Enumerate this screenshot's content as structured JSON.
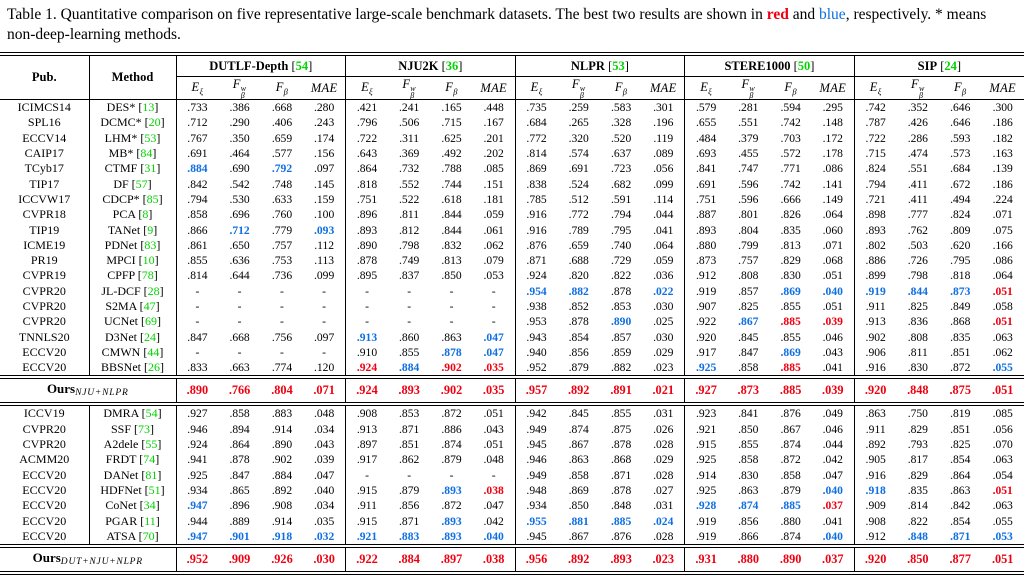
{
  "colors": {
    "red": "#ee0011",
    "blue": "#0e6fe2",
    "green": "#00d300",
    "black": "#000000"
  },
  "caption": {
    "parts": [
      {
        "text": "Table 1. Quantitative comparison on five representative large-scale benchmark datasets. The best two results are shown in ",
        "color": "k"
      },
      {
        "text": "red",
        "color": "r"
      },
      {
        "text": " and ",
        "color": "k"
      },
      {
        "text": "blue",
        "color": "b"
      },
      {
        "text": ", respectively. * means non-deep-learning methods.",
        "color": "k"
      }
    ]
  },
  "table": {
    "pub_header": "Pub.",
    "method_header": "Method",
    "groups": [
      {
        "name": "DUTLF-Depth",
        "ref": "54"
      },
      {
        "name": "NJU2K",
        "ref": "36"
      },
      {
        "name": "NLPR",
        "ref": "53"
      },
      {
        "name": "STERE1000",
        "ref": "50"
      },
      {
        "name": "SIP",
        "ref": "24"
      }
    ],
    "metrics": [
      {
        "base": "E",
        "sub": "ξ"
      },
      {
        "base": "F",
        "sup": "w",
        "sub": "β"
      },
      {
        "base": "F",
        "sub": "β"
      },
      {
        "base": "MAE"
      }
    ],
    "sections": [
      {
        "rows": [
          {
            "pub": "ICIMCS14",
            "method": "DES*",
            "ref": "13",
            "values": [
              ".733",
              ".386",
              ".668",
              ".280",
              ".421",
              ".241",
              ".165",
              ".448",
              ".735",
              ".259",
              ".583",
              ".301",
              ".579",
              ".281",
              ".594",
              ".295",
              ".742",
              ".352",
              ".646",
              ".300"
            ],
            "colors": "kkkkkkkkkkkkkkkkkkkk"
          },
          {
            "pub": "SPL16",
            "method": "DCMC*",
            "ref": "20",
            "values": [
              ".712",
              ".290",
              ".406",
              ".243",
              ".796",
              ".506",
              ".715",
              ".167",
              ".684",
              ".265",
              ".328",
              ".196",
              ".655",
              ".551",
              ".742",
              ".148",
              ".787",
              ".426",
              ".646",
              ".186"
            ],
            "colors": "kkkkkkkkkkkkkkkkkkkk"
          },
          {
            "pub": "ECCV14",
            "method": "LHM*",
            "ref": "53",
            "values": [
              ".767",
              ".350",
              ".659",
              ".174",
              ".722",
              ".311",
              ".625",
              ".201",
              ".772",
              ".320",
              ".520",
              ".119",
              ".484",
              ".379",
              ".703",
              ".172",
              ".722",
              ".286",
              ".593",
              ".182"
            ],
            "colors": "kkkkkkkkkkkkkkkkkkkk"
          },
          {
            "pub": "CAIP17",
            "method": "MB*",
            "ref": "84",
            "values": [
              ".691",
              ".464",
              ".577",
              ".156",
              ".643",
              ".369",
              ".492",
              ".202",
              ".814",
              ".574",
              ".637",
              ".089",
              ".693",
              ".455",
              ".572",
              ".178",
              ".715",
              ".474",
              ".573",
              ".163"
            ],
            "colors": "kkkkkkkkkkkkkkkkkkkk"
          },
          {
            "pub": "TCyb17",
            "method": "CTMF",
            "ref": "31",
            "values": [
              ".884",
              ".690",
              ".792",
              ".097",
              ".864",
              ".732",
              ".788",
              ".085",
              ".869",
              ".691",
              ".723",
              ".056",
              ".841",
              ".747",
              ".771",
              ".086",
              ".824",
              ".551",
              ".684",
              ".139"
            ],
            "colors": "bkbkkkkkkkkkkkkkkkkk"
          },
          {
            "pub": "TIP17",
            "method": "DF",
            "ref": "57",
            "values": [
              ".842",
              ".542",
              ".748",
              ".145",
              ".818",
              ".552",
              ".744",
              ".151",
              ".838",
              ".524",
              ".682",
              ".099",
              ".691",
              ".596",
              ".742",
              ".141",
              ".794",
              ".411",
              ".672",
              ".186"
            ],
            "colors": "kkkkkkkkkkkkkkkkkkkk"
          },
          {
            "pub": "ICCVW17",
            "method": "CDCP*",
            "ref": "85",
            "values": [
              ".794",
              ".530",
              ".633",
              ".159",
              ".751",
              ".522",
              ".618",
              ".181",
              ".785",
              ".512",
              ".591",
              ".114",
              ".751",
              ".596",
              ".666",
              ".149",
              ".721",
              ".411",
              ".494",
              ".224"
            ],
            "colors": "kkkkkkkkkkkkkkkkkkkk"
          },
          {
            "pub": "CVPR18",
            "method": "PCA",
            "ref": "8",
            "values": [
              ".858",
              ".696",
              ".760",
              ".100",
              ".896",
              ".811",
              ".844",
              ".059",
              ".916",
              ".772",
              ".794",
              ".044",
              ".887",
              ".801",
              ".826",
              ".064",
              ".898",
              ".777",
              ".824",
              ".071"
            ],
            "colors": "kkkkkkkkkkkkkkkkkkkk"
          },
          {
            "pub": "TIP19",
            "method": "TANet",
            "ref": "9",
            "values": [
              ".866",
              ".712",
              ".779",
              ".093",
              ".893",
              ".812",
              ".844",
              ".061",
              ".916",
              ".789",
              ".795",
              ".041",
              ".893",
              ".804",
              ".835",
              ".060",
              ".893",
              ".762",
              ".809",
              ".075"
            ],
            "colors": "kbkbkkkkkkkkkkkkkkkk"
          },
          {
            "pub": "ICME19",
            "method": "PDNet",
            "ref": "83",
            "values": [
              ".861",
              ".650",
              ".757",
              ".112",
              ".890",
              ".798",
              ".832",
              ".062",
              ".876",
              ".659",
              ".740",
              ".064",
              ".880",
              ".799",
              ".813",
              ".071",
              ".802",
              ".503",
              ".620",
              ".166"
            ],
            "colors": "kkkkkkkkkkkkkkkkkkkk"
          },
          {
            "pub": "PR19",
            "method": "MPCI",
            "ref": "10",
            "values": [
              ".855",
              ".636",
              ".753",
              ".113",
              ".878",
              ".749",
              ".813",
              ".079",
              ".871",
              ".688",
              ".729",
              ".059",
              ".873",
              ".757",
              ".829",
              ".068",
              ".886",
              ".726",
              ".795",
              ".086"
            ],
            "colors": "kkkkkkkkkkkkkkkkkkkk"
          },
          {
            "pub": "CVPR19",
            "method": "CPFP",
            "ref": "78",
            "values": [
              ".814",
              ".644",
              ".736",
              ".099",
              ".895",
              ".837",
              ".850",
              ".053",
              ".924",
              ".820",
              ".822",
              ".036",
              ".912",
              ".808",
              ".830",
              ".051",
              ".899",
              ".798",
              ".818",
              ".064"
            ],
            "colors": "kkkkkkkkkkkkkkkkkkkk"
          },
          {
            "pub": "CVPR20",
            "method": "JL-DCF",
            "ref": "28",
            "values": [
              "-",
              "-",
              "-",
              "-",
              "-",
              "-",
              "-",
              "-",
              ".954",
              ".882",
              ".878",
              ".022",
              ".919",
              ".857",
              ".869",
              ".040",
              ".919",
              ".844",
              ".873",
              ".051"
            ],
            "colors": "kkkkkkkkbbkbkkbbbbbr"
          },
          {
            "pub": "CVPR20",
            "method": "S2MA",
            "ref": "47",
            "values": [
              "-",
              "-",
              "-",
              "-",
              "-",
              "-",
              "-",
              "-",
              ".938",
              ".852",
              ".853",
              ".030",
              ".907",
              ".825",
              ".855",
              ".051",
              ".911",
              ".825",
              ".849",
              ".058"
            ],
            "colors": "kkkkkkkkkkkkkkkkkkkk"
          },
          {
            "pub": "CVPR20",
            "method": "UCNet",
            "ref": "69",
            "values": [
              "-",
              "-",
              "-",
              "-",
              "-",
              "-",
              "-",
              "-",
              ".953",
              ".878",
              ".890",
              ".025",
              ".922",
              ".867",
              ".885",
              ".039",
              ".913",
              ".836",
              ".868",
              ".051"
            ],
            "colors": "kkkkkkkkkkbkkbrrkkkr"
          },
          {
            "pub": "TNNLS20",
            "method": "D3Net",
            "ref": "24",
            "values": [
              ".847",
              ".668",
              ".756",
              ".097",
              ".913",
              ".860",
              ".863",
              ".047",
              ".943",
              ".854",
              ".857",
              ".030",
              ".920",
              ".845",
              ".855",
              ".046",
              ".902",
              ".808",
              ".835",
              ".063"
            ],
            "colors": "kkkkbkkbkkkkkkkkkkkk"
          },
          {
            "pub": "ECCV20",
            "method": "CMWN",
            "ref": "44",
            "values": [
              "-",
              "-",
              "-",
              "-",
              ".910",
              ".855",
              ".878",
              ".047",
              ".940",
              ".856",
              ".859",
              ".029",
              ".917",
              ".847",
              ".869",
              ".043",
              ".906",
              ".811",
              ".851",
              ".062"
            ],
            "colors": "kkkkkkbbkkkkkkbkkkkk"
          },
          {
            "pub": "ECCV20",
            "method": "BBSNet",
            "ref": "26",
            "values": [
              ".833",
              ".663",
              ".774",
              ".120",
              ".924",
              ".884",
              ".902",
              ".035",
              ".952",
              ".879",
              ".882",
              ".023",
              ".925",
              ".858",
              ".885",
              ".041",
              ".916",
              ".830",
              ".872",
              ".055"
            ],
            "colors": "kkkkrbrrkkkkbkrkkkkb"
          }
        ],
        "ours": {
          "label": "Ours",
          "sub": "NJU+NLPR",
          "values": [
            ".890",
            ".766",
            ".804",
            ".071",
            ".924",
            ".893",
            ".902",
            ".035",
            ".957",
            ".892",
            ".891",
            ".021",
            ".927",
            ".873",
            ".885",
            ".039",
            ".920",
            ".848",
            ".875",
            ".051"
          ],
          "colors": "rrrrrrrrrrrrrrrrrrrr"
        }
      },
      {
        "rows": [
          {
            "pub": "ICCV19",
            "method": "DMRA",
            "ref": "54",
            "values": [
              ".927",
              ".858",
              ".883",
              ".048",
              ".908",
              ".853",
              ".872",
              ".051",
              ".942",
              ".845",
              ".855",
              ".031",
              ".923",
              ".841",
              ".876",
              ".049",
              ".863",
              ".750",
              ".819",
              ".085"
            ],
            "colors": "kkkkkkkkkkkkkkkkkkkk"
          },
          {
            "pub": "CVPR20",
            "method": "SSF",
            "ref": "73",
            "values": [
              ".946",
              ".894",
              ".914",
              ".034",
              ".913",
              ".871",
              ".886",
              ".043",
              ".949",
              ".874",
              ".875",
              ".026",
              ".921",
              ".850",
              ".867",
              ".046",
              ".911",
              ".829",
              ".851",
              ".056"
            ],
            "colors": "kkkkkkkkkkkkkkkkkkkk"
          },
          {
            "pub": "CVPR20",
            "method": "A2dele",
            "ref": "55",
            "values": [
              ".924",
              ".864",
              ".890",
              ".043",
              ".897",
              ".851",
              ".874",
              ".051",
              ".945",
              ".867",
              ".878",
              ".028",
              ".915",
              ".855",
              ".874",
              ".044",
              ".892",
              ".793",
              ".825",
              ".070"
            ],
            "colors": "kkkkkkkkkkkkkkkkkkkk"
          },
          {
            "pub": "ACMM20",
            "method": "FRDT",
            "ref": "74",
            "values": [
              ".941",
              ".878",
              ".902",
              ".039",
              ".917",
              ".862",
              ".879",
              ".048",
              ".946",
              ".863",
              ".868",
              ".029",
              ".925",
              ".858",
              ".872",
              ".042",
              ".905",
              ".817",
              ".854",
              ".063"
            ],
            "colors": "kkkkkkkkkkkkkkkkkkkk"
          },
          {
            "pub": "ECCV20",
            "method": "DANet",
            "ref": "81",
            "values": [
              ".925",
              ".847",
              ".884",
              ".047",
              "-",
              "-",
              "-",
              "-",
              ".949",
              ".858",
              ".871",
              ".028",
              ".914",
              ".830",
              ".858",
              ".047",
              ".916",
              ".829",
              ".864",
              ".054"
            ],
            "colors": "kkkkkkkkkkkkkkkkkkkk"
          },
          {
            "pub": "ECCV20",
            "method": "HDFNet",
            "ref": "51",
            "values": [
              ".934",
              ".865",
              ".892",
              ".040",
              ".915",
              ".879",
              ".893",
              ".038",
              ".948",
              ".869",
              ".878",
              ".027",
              ".925",
              ".863",
              ".879",
              ".040",
              ".918",
              ".835",
              ".863",
              ".051"
            ],
            "colors": "kkkkkkbrkkkkkkkbbkkr"
          },
          {
            "pub": "ECCV20",
            "method": "CoNet",
            "ref": "34",
            "values": [
              ".947",
              ".896",
              ".908",
              ".034",
              ".911",
              ".856",
              ".872",
              ".047",
              ".934",
              ".850",
              ".848",
              ".031",
              ".928",
              ".874",
              ".885",
              ".037",
              ".909",
              ".814",
              ".842",
              ".063"
            ],
            "colors": "bkkkkkkkkkkkbbbrkkkk"
          },
          {
            "pub": "ECCV20",
            "method": "PGAR",
            "ref": "11",
            "values": [
              ".944",
              ".889",
              ".914",
              ".035",
              ".915",
              ".871",
              ".893",
              ".042",
              ".955",
              ".881",
              ".885",
              ".024",
              ".919",
              ".856",
              ".880",
              ".041",
              ".908",
              ".822",
              ".854",
              ".055"
            ],
            "colors": "kkkkkkbkbbbbkkkkkkkk"
          },
          {
            "pub": "ECCV20",
            "method": "ATSA",
            "ref": "70",
            "values": [
              ".947",
              ".901",
              ".918",
              ".032",
              ".921",
              ".883",
              ".893",
              ".040",
              ".945",
              ".867",
              ".876",
              ".028",
              ".919",
              ".866",
              ".874",
              ".040",
              ".912",
              ".848",
              ".871",
              ".053"
            ],
            "colors": "bbbbbbbbkkkkkkkbkbbb"
          }
        ],
        "ours": {
          "label": "Ours",
          "sub": "DUT+NJU+NLPR",
          "values": [
            ".952",
            ".909",
            ".926",
            ".030",
            ".922",
            ".884",
            ".897",
            ".038",
            ".956",
            ".892",
            ".893",
            ".023",
            ".931",
            ".880",
            ".890",
            ".037",
            ".920",
            ".850",
            ".877",
            ".051"
          ],
          "colors": "rrrrrrrrrrrrrrrrrrrr"
        }
      }
    ]
  }
}
